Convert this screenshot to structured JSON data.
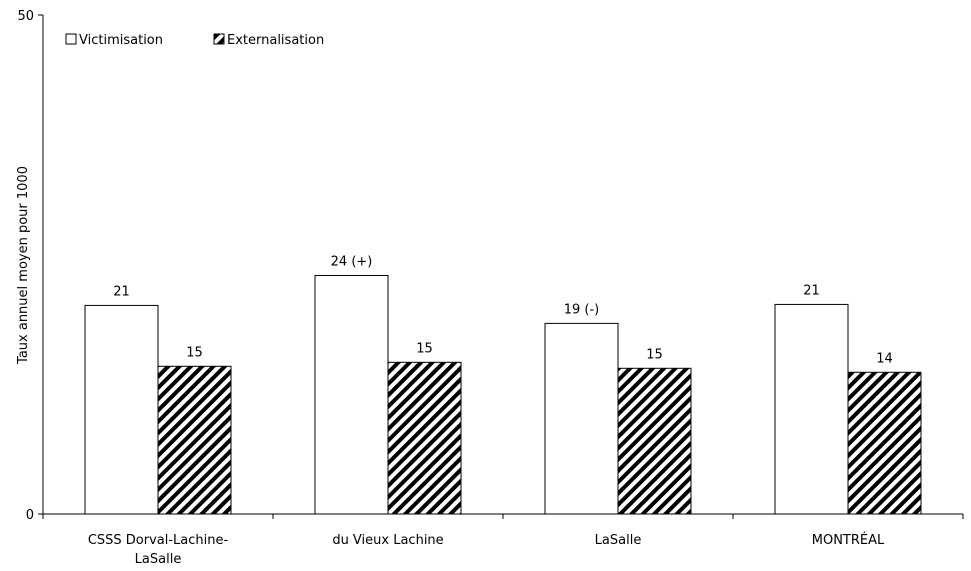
{
  "chart_data": {
    "type": "bar",
    "ylabel": "Taux annuel moyen pour 1000",
    "ylim": [
      0,
      50
    ],
    "y_ticks": [
      "0",
      "50"
    ],
    "categories": [
      "CSSS Dorval-Lachine-\nLaSalle",
      "du Vieux Lachine",
      "LaSalle",
      "MONTRÉAL"
    ],
    "series": [
      {
        "name": "Victimisation",
        "values": [
          20.9,
          23.9,
          19.1,
          21.0
        ],
        "labels": [
          "21",
          "24 (+)",
          "19 (-)",
          "21"
        ],
        "fill": "#ffffff"
      },
      {
        "name": "Externalisation",
        "values": [
          14.8,
          15.2,
          14.6,
          14.2
        ],
        "labels": [
          "15",
          "15",
          "15",
          "14"
        ],
        "fill": "hatch"
      }
    ],
    "legend_position": "top-left",
    "grid": false
  }
}
